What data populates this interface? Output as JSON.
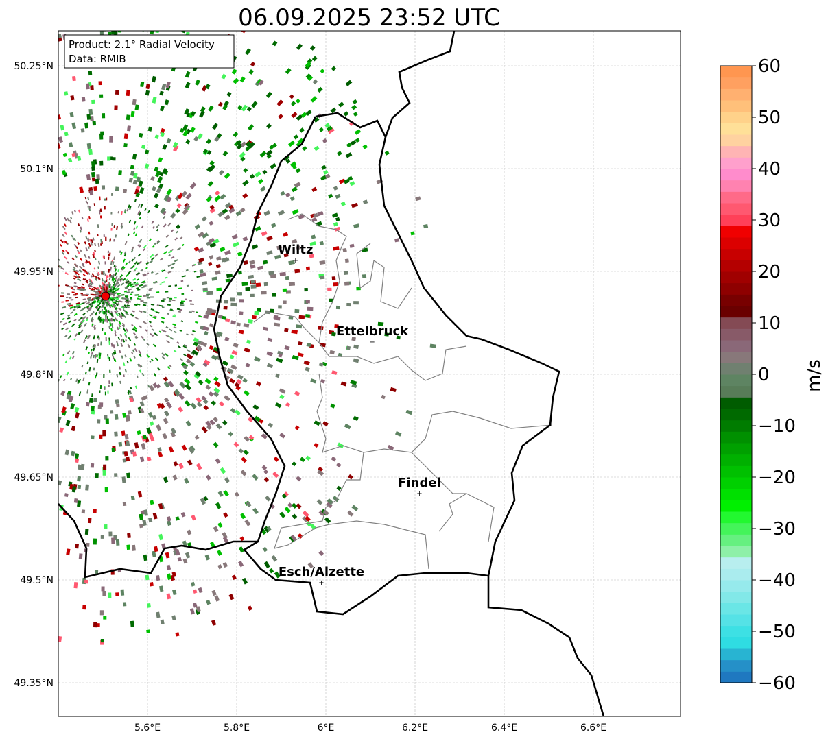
{
  "title": "06.09.2025 23:52 UTC",
  "info_box": {
    "product": "Product: 2.1° Radial Velocity",
    "data": "Data: RMIB"
  },
  "x_ticks": [
    {
      "v": 5.6,
      "label": "5.6°E"
    },
    {
      "v": 5.8,
      "label": "5.8°E"
    },
    {
      "v": 6.0,
      "label": "6°E"
    },
    {
      "v": 6.2,
      "label": "6.2°E"
    },
    {
      "v": 6.4,
      "label": "6.4°E"
    },
    {
      "v": 6.6,
      "label": "6.6°E"
    }
  ],
  "y_ticks": [
    {
      "v": 50.25,
      "label": "50.25°N"
    },
    {
      "v": 50.1,
      "label": "50.1°N"
    },
    {
      "v": 49.95,
      "label": "49.95°N"
    },
    {
      "v": 49.8,
      "label": "49.8°N"
    },
    {
      "v": 49.65,
      "label": "49.65°N"
    },
    {
      "v": 49.5,
      "label": "49.5°N"
    },
    {
      "v": 49.35,
      "label": "49.35°N"
    }
  ],
  "extent": {
    "lon": [
      5.4,
      6.8
    ],
    "lat": [
      49.3,
      50.3
    ]
  },
  "radar_site": {
    "lon": 5.506,
    "lat": 49.914
  },
  "cities": [
    {
      "name": "Wiltz",
      "lon": 5.932,
      "lat": 49.966
    },
    {
      "name": "Ettelbruck",
      "lon": 6.104,
      "lat": 49.847
    },
    {
      "name": "Findel",
      "lon": 6.21,
      "lat": 49.626
    },
    {
      "name": "Esch/Alzette",
      "lon": 5.99,
      "lat": 49.496
    }
  ],
  "colorbar": {
    "label": "m/s",
    "range": [
      -60,
      60
    ],
    "ticks": [
      "−60",
      "−50",
      "−40",
      "−30",
      "−20",
      "−10",
      "0",
      "10",
      "20",
      "30",
      "40",
      "50",
      "60"
    ],
    "colors": [
      "#1f78c0",
      "#2590c8",
      "#28b4d2",
      "#2fdce2",
      "#3de0e4",
      "#55e2e6",
      "#6ae6e6",
      "#82e8e8",
      "#96eaec",
      "#aaecee",
      "#b8eeef",
      "#8ef0a8",
      "#66f080",
      "#44f45a",
      "#22f830",
      "#00f000",
      "#00e000",
      "#00d000",
      "#00c000",
      "#00b000",
      "#00a000",
      "#009000",
      "#007c00",
      "#006a00",
      "#005c00",
      "#587c58",
      "#5e8462",
      "#708070",
      "#88787a",
      "#8a6878",
      "#885a68",
      "#844a54",
      "#6a0000",
      "#780000",
      "#8e0000",
      "#a00000",
      "#b40000",
      "#c80000",
      "#dc0000",
      "#f00000",
      "#ff4058",
      "#ff5870",
      "#ff6a88",
      "#ff82b0",
      "#ff8ccc",
      "#ffa0cc",
      "#ffb4b4",
      "#ffd2a0",
      "#ffe098",
      "#ffd28a",
      "#ffc07a",
      "#ffb070",
      "#ffa060",
      "#ff9650"
    ]
  }
}
